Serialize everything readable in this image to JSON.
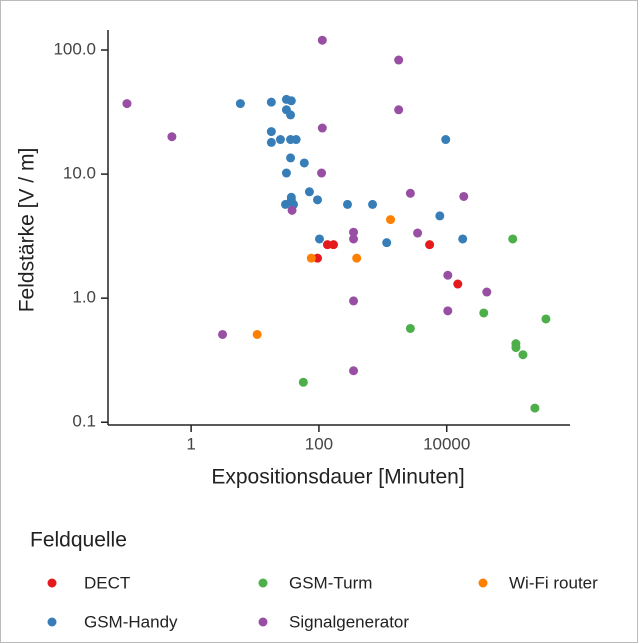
{
  "chart_data": {
    "type": "scatter",
    "xlabel": "Expositionsdauer [Minuten]",
    "ylabel": "Feldstärke [V / m]",
    "legend_title": "Feldquelle",
    "xscale": "log",
    "yscale": "log",
    "xlim": [
      0.05,
      850000
    ],
    "ylim": [
      0.095,
      145
    ],
    "xticks": [
      1,
      100,
      10000
    ],
    "yticks": [
      {
        "value": 100,
        "label": "100.0"
      },
      {
        "value": 10,
        "label": "10.0"
      },
      {
        "value": 1,
        "label": "1.0"
      },
      {
        "value": 0.1,
        "label": "0.1"
      }
    ],
    "legend": "bottom",
    "series": [
      {
        "name": "DECT",
        "color": "#e41a1c",
        "x": [
          95,
          136,
          169,
          5400,
          14900
        ],
        "values": [
          2.1,
          2.7,
          2.7,
          2.7,
          1.3
        ]
      },
      {
        "name": "GSM-Handy",
        "color": "#377eb8",
        "x": [
          5.9,
          18,
          31,
          37,
          31,
          36,
          18,
          18,
          25,
          36,
          44,
          36,
          59,
          31,
          71,
          37,
          37,
          30,
          40,
          95,
          280,
          690,
          102,
          1150,
          7800,
          9650,
          17800
        ],
        "values": [
          37,
          38,
          40,
          39,
          33,
          30,
          22,
          18,
          19,
          19,
          19,
          13.5,
          12.3,
          10.2,
          7.2,
          6.5,
          6.2,
          5.7,
          5.7,
          6.2,
          5.7,
          5.7,
          3.0,
          2.8,
          4.6,
          19,
          3.0
        ]
      },
      {
        "name": "GSM-Turm",
        "color": "#4daf4a",
        "x": [
          108000,
          38000,
          357000,
          2700,
          121000,
          121000,
          156000,
          240000,
          57
        ],
        "values": [
          3.0,
          0.76,
          0.68,
          0.57,
          0.43,
          0.4,
          0.35,
          0.13,
          0.21
        ]
      },
      {
        "name": "Signalgenerator",
        "color": "#984ea3",
        "x": [
          0.099,
          0.5,
          3.1,
          113,
          1770,
          1770,
          113,
          110,
          38,
          348,
          348,
          2700,
          3500,
          18500,
          10400,
          42400,
          10400,
          348,
          348
        ],
        "values": [
          37,
          20,
          0.51,
          120,
          83,
          33,
          23.5,
          10.2,
          5.1,
          3.4,
          3.0,
          7.0,
          3.35,
          6.6,
          1.53,
          1.12,
          0.79,
          0.95,
          0.26
        ]
      },
      {
        "name": "Wi-Fi router",
        "color": "#ff7f00",
        "x": [
          76,
          390,
          1320,
          10.8
        ],
        "values": [
          2.1,
          2.1,
          4.3,
          0.51
        ]
      }
    ]
  }
}
